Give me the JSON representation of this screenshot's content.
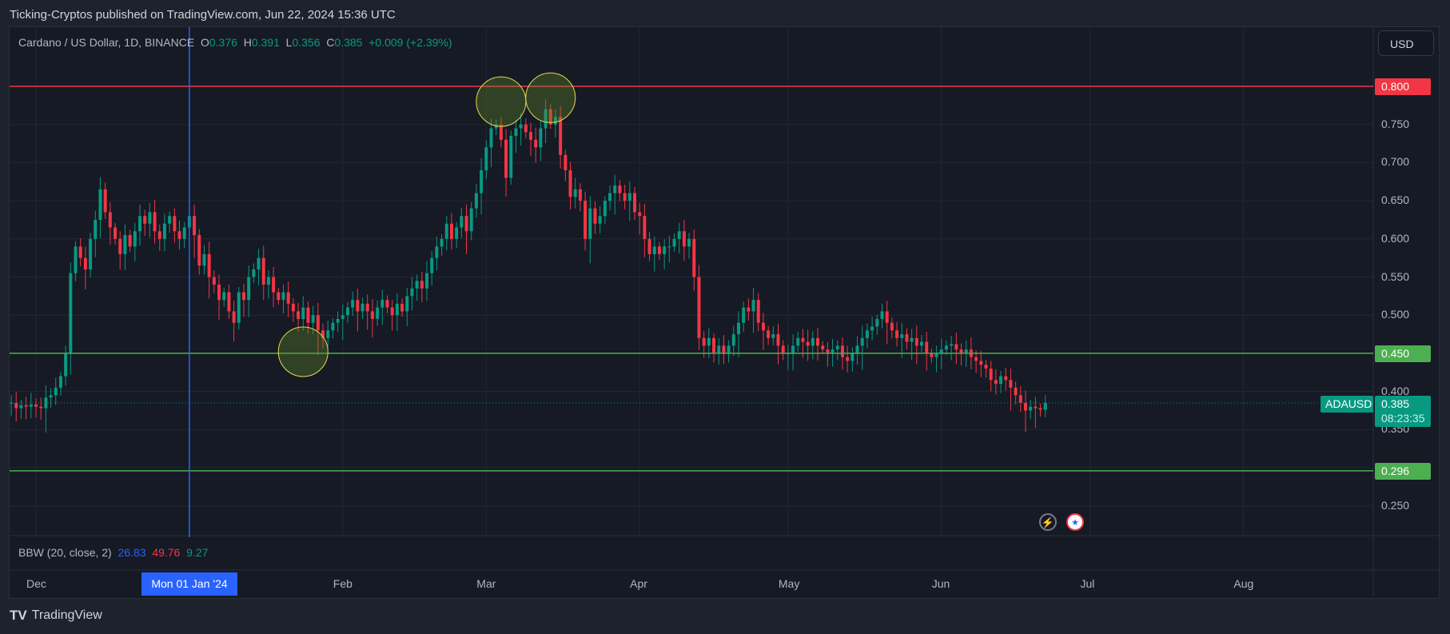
{
  "header": {
    "published": "Ticking-Cryptos published on TradingView.com, Jun 22, 2024 15:36 UTC"
  },
  "legend": {
    "symbol": "Cardano / US Dollar, 1D, BINANCE",
    "o_label": "O",
    "o": "0.376",
    "h_label": "H",
    "h": "0.391",
    "l_label": "L",
    "l": "0.356",
    "c_label": "C",
    "c": "0.385",
    "change": "+0.009 (+2.39%)"
  },
  "currency_button": "USD",
  "indicator": {
    "name": "BBW (20, close, 2)",
    "v1": "26.83",
    "v2": "49.76",
    "v3": "9.27",
    "colors": [
      "#2962ff",
      "#f23645",
      "#089981"
    ]
  },
  "price_axis": [
    "0.750",
    "0.700",
    "0.650",
    "0.600",
    "0.550",
    "0.500",
    "0.400",
    "0.350",
    "0.250"
  ],
  "time_axis": {
    "labels": [
      "Dec",
      "Feb",
      "Mar",
      "Apr",
      "May",
      "Jun",
      "Jul",
      "Aug"
    ],
    "crosshair_label": "Mon 01 Jan '24"
  },
  "levels": [
    {
      "value": "0.800",
      "color": "#f23645"
    },
    {
      "value": "0.450",
      "color": "#4caf50"
    },
    {
      "value": "0.296",
      "color": "#4caf50"
    }
  ],
  "last_price": {
    "symbol": "ADAUSD",
    "price": "0.385",
    "countdown": "08:23:35",
    "color": "#089981"
  },
  "footer": {
    "brand": "TradingView"
  },
  "chart_data": {
    "type": "candlestick",
    "ylim": [
      0.22,
      0.84
    ],
    "up_color": "#089981",
    "down_color": "#f23645",
    "crosshair_date": "2024-01-01",
    "highlight_circles": [
      {
        "date": "2024-03-04",
        "price": 0.78
      },
      {
        "date": "2024-03-14",
        "price": 0.785
      },
      {
        "date": "2024-01-24",
        "price": 0.452
      }
    ],
    "daily_close": [
      {
        "month": "2023-11",
        "first_day": 26,
        "close": [
          0.385,
          0.378,
          0.382,
          0.38,
          0.383
        ]
      },
      {
        "month": "2023-12",
        "first_day": 1,
        "close": [
          0.38,
          0.378,
          0.392,
          0.395,
          0.405,
          0.42,
          0.45,
          0.555,
          0.59,
          0.575,
          0.56,
          0.6,
          0.625,
          0.665,
          0.635,
          0.615,
          0.6,
          0.58,
          0.605,
          0.59,
          0.61,
          0.63,
          0.62,
          0.635,
          0.61,
          0.6,
          0.62,
          0.63,
          0.61,
          0.6,
          0.615
        ]
      },
      {
        "month": "2024-01",
        "first_day": 1,
        "close": [
          0.63,
          0.605,
          0.565,
          0.58,
          0.55,
          0.54,
          0.52,
          0.53,
          0.505,
          0.49,
          0.53,
          0.52,
          0.55,
          0.56,
          0.575,
          0.54,
          0.55,
          0.53,
          0.52,
          0.53,
          0.515,
          0.505,
          0.495,
          0.51,
          0.49,
          0.5,
          0.48,
          0.47,
          0.48,
          0.49,
          0.495
        ]
      },
      {
        "month": "2024-02",
        "first_day": 1,
        "close": [
          0.5,
          0.51,
          0.52,
          0.505,
          0.515,
          0.505,
          0.495,
          0.51,
          0.52,
          0.51,
          0.5,
          0.515,
          0.505,
          0.525,
          0.535,
          0.545,
          0.535,
          0.555,
          0.575,
          0.59,
          0.6,
          0.62,
          0.6,
          0.615,
          0.63,
          0.61,
          0.64,
          0.66,
          0.69
        ]
      },
      {
        "month": "2024-03",
        "first_day": 1,
        "close": [
          0.72,
          0.745,
          0.75,
          0.73,
          0.68,
          0.735,
          0.745,
          0.75,
          0.74,
          0.73,
          0.72,
          0.745,
          0.77,
          0.75,
          0.76,
          0.71,
          0.69,
          0.655,
          0.665,
          0.65,
          0.6,
          0.64,
          0.62,
          0.63,
          0.65,
          0.66,
          0.67,
          0.66,
          0.65,
          0.66,
          0.635
        ]
      },
      {
        "month": "2024-04",
        "first_day": 1,
        "close": [
          0.63,
          0.6,
          0.58,
          0.59,
          0.58,
          0.59,
          0.59,
          0.6,
          0.61,
          0.59,
          0.6,
          0.55,
          0.47,
          0.46,
          0.47,
          0.45,
          0.46,
          0.45,
          0.46,
          0.475,
          0.49,
          0.51,
          0.505,
          0.52,
          0.49,
          0.48,
          0.47,
          0.475,
          0.46,
          0.45
        ]
      },
      {
        "month": "2024-05",
        "first_day": 1,
        "close": [
          0.45,
          0.46,
          0.47,
          0.465,
          0.46,
          0.47,
          0.46,
          0.455,
          0.45,
          0.455,
          0.46,
          0.445,
          0.44,
          0.45,
          0.46,
          0.47,
          0.48,
          0.485,
          0.495,
          0.505,
          0.49,
          0.48,
          0.47,
          0.475,
          0.465,
          0.47,
          0.46,
          0.465,
          0.45,
          0.445,
          0.45
        ]
      },
      {
        "month": "2024-06",
        "first_day": 1,
        "close": [
          0.455,
          0.46,
          0.462,
          0.455,
          0.45,
          0.455,
          0.445,
          0.44,
          0.435,
          0.43,
          0.415,
          0.41,
          0.42,
          0.415,
          0.405,
          0.395,
          0.385,
          0.375,
          0.38,
          0.378,
          0.376,
          0.385
        ]
      }
    ]
  }
}
